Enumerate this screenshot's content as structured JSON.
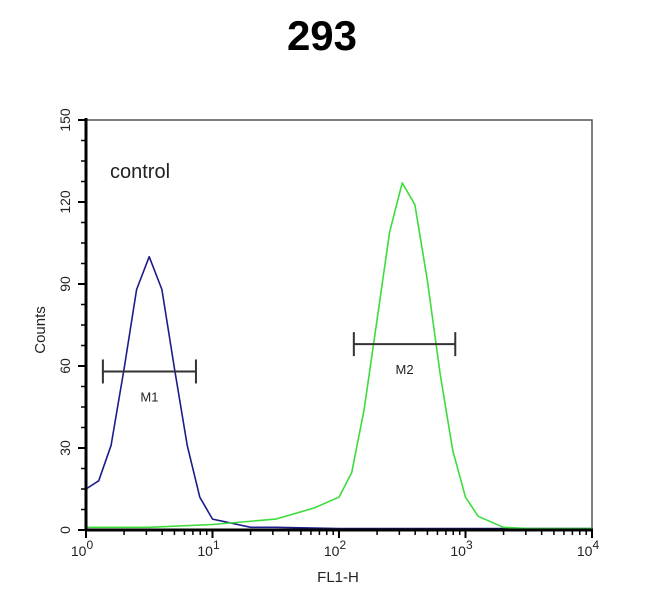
{
  "chart_data": {
    "type": "line",
    "title": "293",
    "xlabel": "FL1-H",
    "ylabel": "Counts",
    "x_scale": "log",
    "xlim": [
      1,
      10000
    ],
    "ylim": [
      0,
      150
    ],
    "x_ticks": [
      "10^0",
      "10^1",
      "10^2",
      "10^3",
      "10^4"
    ],
    "x_tick_values": [
      1,
      10,
      100,
      1000,
      10000
    ],
    "y_ticks": [
      0,
      30,
      60,
      90,
      120,
      150
    ],
    "grid": false,
    "annotation": "control",
    "colors": {
      "control": "#1c1c8a",
      "sample": "#3ddc3d",
      "marker": "#333333"
    },
    "series": [
      {
        "x": [
          1,
          1.26,
          1.58,
          2.0,
          2.51,
          3.16,
          3.98,
          5.01,
          6.31,
          7.94,
          10,
          12.6,
          15.8,
          20,
          31.6,
          100,
          1000,
          10000
        ],
        "y": [
          15,
          18,
          31,
          59,
          88,
          100,
          88,
          59,
          31,
          12,
          4,
          3,
          2,
          1,
          1,
          0.5,
          0.5,
          0.5
        ]
      },
      {
        "x": [
          1,
          3.16,
          10,
          31.6,
          63.1,
          100,
          126,
          158,
          200,
          251,
          316,
          398,
          501,
          631,
          794,
          1000,
          1259,
          1585,
          1995,
          3162,
          10000
        ],
        "y": [
          1,
          1,
          2,
          4,
          8,
          12,
          21,
          44,
          77,
          109,
          127,
          119,
          91,
          57,
          29,
          12,
          5,
          3,
          1,
          0.5,
          0.5
        ]
      }
    ],
    "markers": [
      {
        "label": "M1",
        "x_range": [
          1.36,
          7.4
        ],
        "y": 58
      },
      {
        "label": "M2",
        "x_range": [
          131,
          830
        ],
        "y": 68
      }
    ]
  }
}
